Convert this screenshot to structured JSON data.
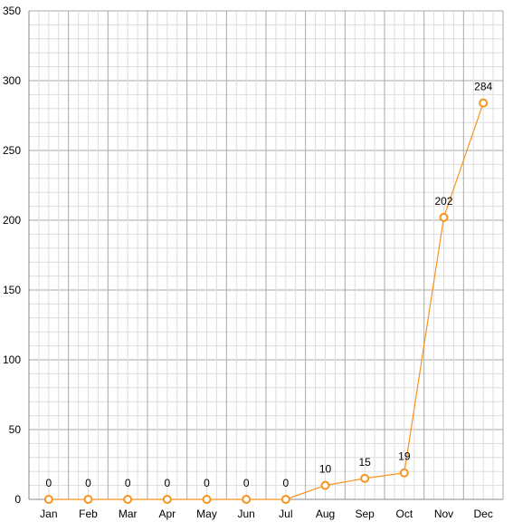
{
  "chart_data": {
    "type": "line",
    "title": "",
    "xlabel": "",
    "ylabel": "",
    "categories": [
      "Jan",
      "Feb",
      "Mar",
      "Apr",
      "May",
      "Jun",
      "Jul",
      "Aug",
      "Sep",
      "Oct",
      "Nov",
      "Dec"
    ],
    "series": [
      {
        "values": [
          0,
          0,
          0,
          0,
          0,
          0,
          0,
          10,
          15,
          19,
          202,
          284
        ],
        "color": "#f7931e",
        "marker": "hollow-circle",
        "data_labels": [
          "0",
          "0",
          "0",
          "0",
          "0",
          "0",
          "0",
          "10",
          "15",
          "19",
          "202",
          "284"
        ]
      }
    ],
    "ylim": [
      0,
      350
    ],
    "yticks": [
      "0",
      "50",
      "100",
      "150",
      "200",
      "250",
      "300",
      "350"
    ],
    "grid": true,
    "legend": "none"
  },
  "colors": {
    "line": "#f7931e",
    "marker_fill": "#ffffff",
    "grid_major": "#aaaaaa",
    "grid_minor": "#dddddd",
    "text": "#000000"
  }
}
